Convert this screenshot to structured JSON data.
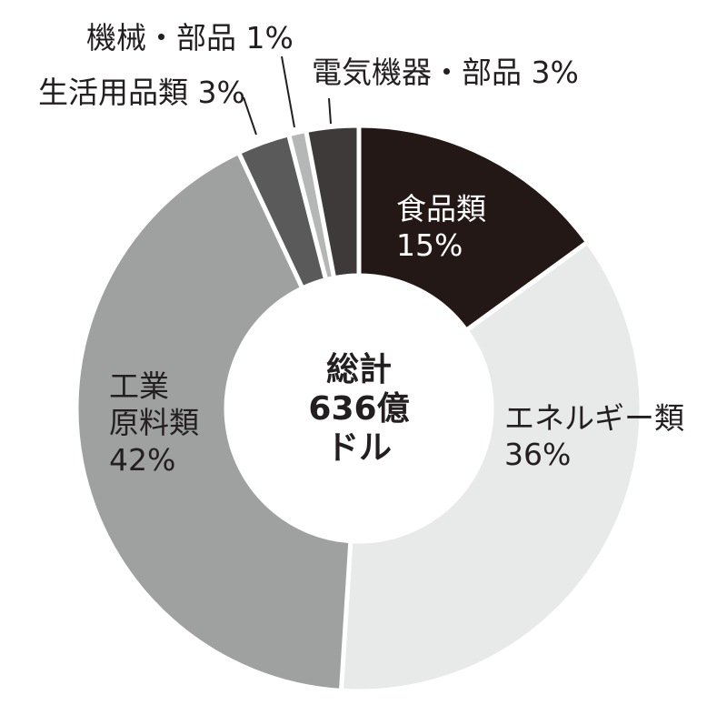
{
  "chart_data": {
    "type": "pie",
    "variant": "donut",
    "title": "",
    "center_label": [
      "総計",
      "636億",
      "ドル"
    ],
    "total": "636億ドル",
    "start_angle_deg": 0,
    "direction": "clockwise",
    "slices": [
      {
        "label": "食品類",
        "value": 15,
        "color": "#231815"
      },
      {
        "label": "エネルギー類",
        "value": 36,
        "color": "#e8e9e9"
      },
      {
        "label": "工業原料類",
        "value": 42,
        "color": "#9fa0a0"
      },
      {
        "label": "生活用品類",
        "value": 3,
        "color": "#5a5a5a"
      },
      {
        "label": "機械・部品",
        "value": 1,
        "color": "#b5b6b6"
      },
      {
        "label": "電気機器・部品",
        "value": 3,
        "color": "#3e3a39"
      }
    ],
    "legend": "none (direct labels)"
  },
  "labels": {
    "food": {
      "name": "食品類",
      "pct": "15%"
    },
    "energy": {
      "name": "エネルギー類",
      "pct": "36%"
    },
    "industrial": {
      "line1": "工業",
      "line2": "原料類",
      "pct": "42%"
    },
    "household": {
      "text": "生活用品類 3%"
    },
    "machinery": {
      "text": "機械・部品 1%"
    },
    "electrical": {
      "text": "電気機器・部品 3%"
    }
  },
  "center": {
    "line1": "総計",
    "line2": "636億",
    "line3": "ドル"
  }
}
